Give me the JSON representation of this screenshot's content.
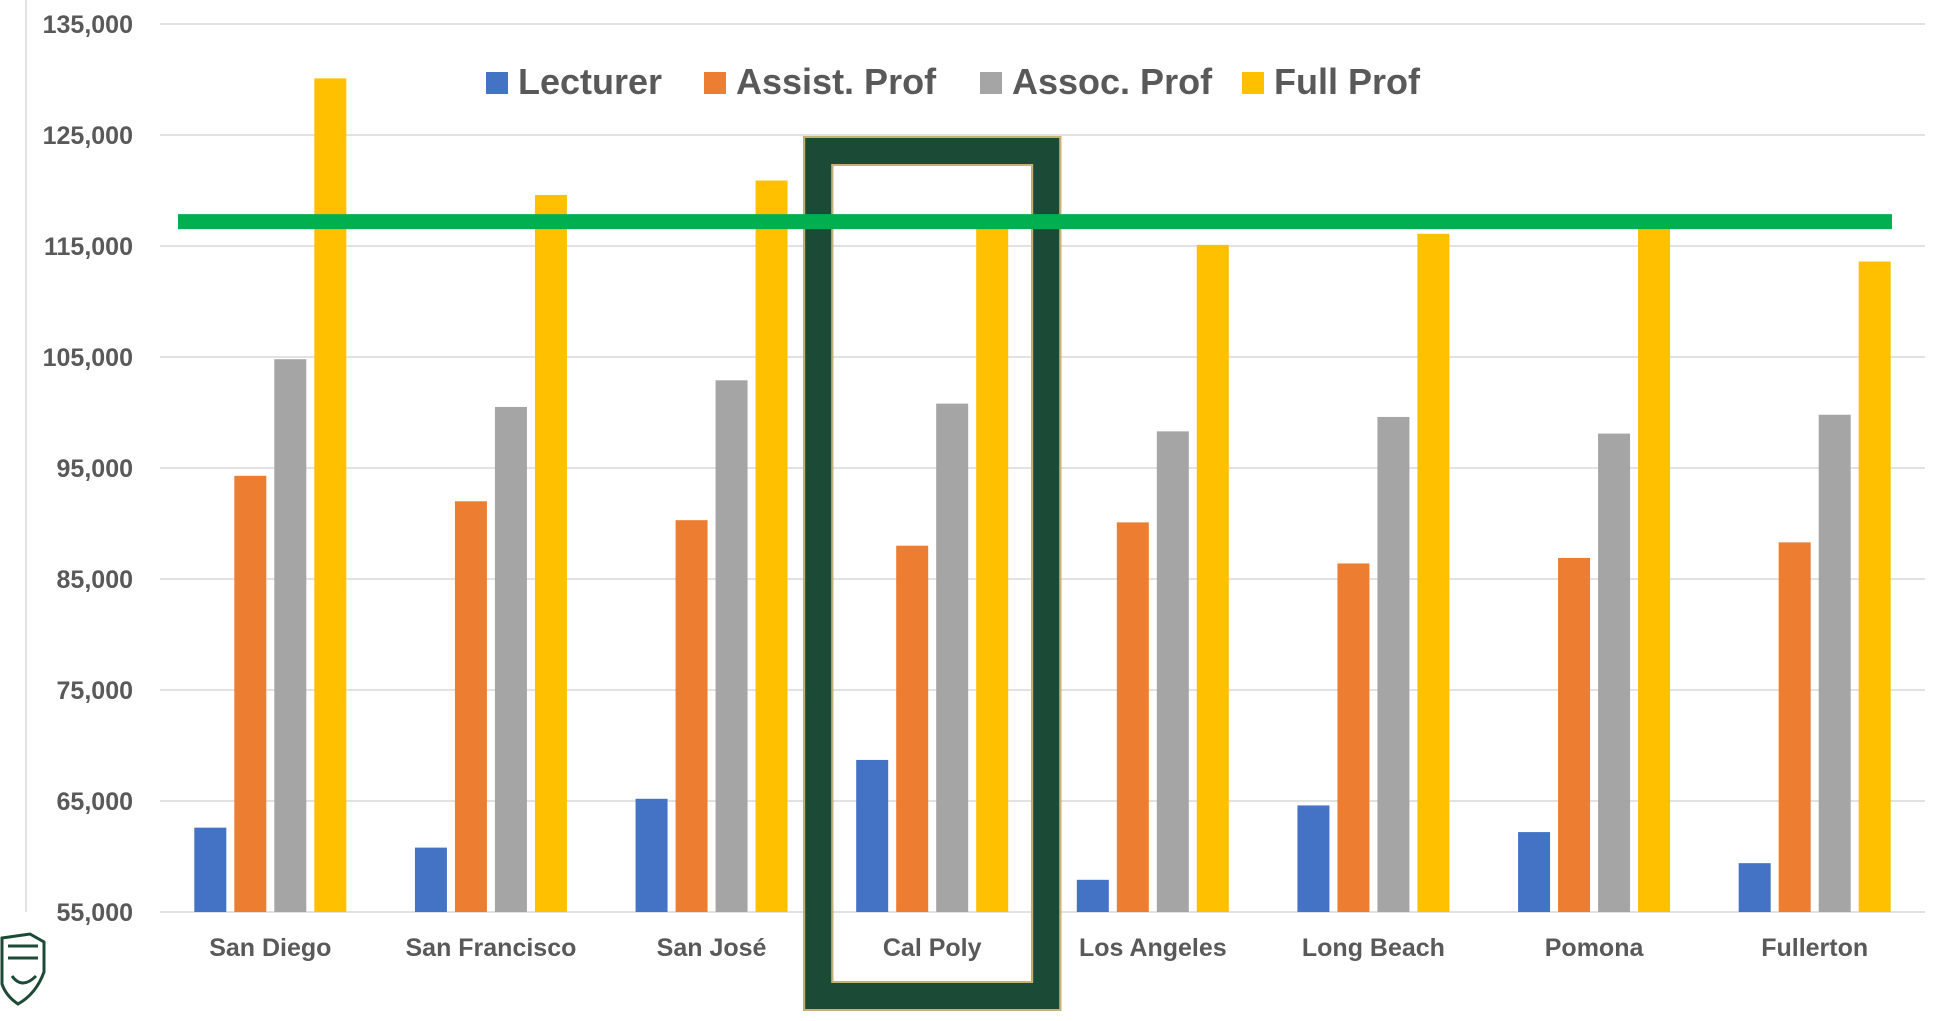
{
  "chart_data": {
    "type": "bar",
    "title": "",
    "xlabel": "",
    "ylabel": "",
    "ylim": [
      55000,
      135000
    ],
    "yticks": [
      55000,
      65000,
      75000,
      85000,
      95000,
      105000,
      115000,
      125000,
      135000
    ],
    "ytick_labels": [
      "55,000",
      "65,000",
      "75,000",
      "85,000",
      "95,000",
      "105,000",
      "115,000",
      "125,000",
      "135,000"
    ],
    "grid": true,
    "legend_position": "top-center",
    "categories": [
      "San Diego",
      "San Francisco",
      "San José",
      "Cal Poly",
      "Los Angeles",
      "Long Beach",
      "Pomona",
      "Fullerton"
    ],
    "series": [
      {
        "name": "Lecturer",
        "color": "#4472C4",
        "values": [
          62600,
          60800,
          65200,
          68700,
          57900,
          64600,
          62200,
          59400
        ]
      },
      {
        "name": "Assist. Prof",
        "color": "#ED7D31",
        "values": [
          94300,
          92000,
          90300,
          88000,
          90100,
          86400,
          86900,
          88300
        ]
      },
      {
        "name": "Assoc. Prof",
        "color": "#A5A5A5",
        "values": [
          104800,
          100500,
          102900,
          100800,
          98300,
          99600,
          98100,
          99800
        ]
      },
      {
        "name": "Full Prof",
        "color": "#FFC000",
        "values": [
          130100,
          119600,
          120900,
          117300,
          115100,
          116100,
          117200,
          113600
        ]
      }
    ],
    "reference_line": {
      "value": 117200,
      "color": "#00B050"
    },
    "highlight": {
      "category": "Cal Poly",
      "color": "#1B4A36",
      "inner_border_color": "#C8B273"
    },
    "axis_text_color": "#595959",
    "gridline_color": "#D9D9D9",
    "logo_icon": "university-shield-icon"
  }
}
